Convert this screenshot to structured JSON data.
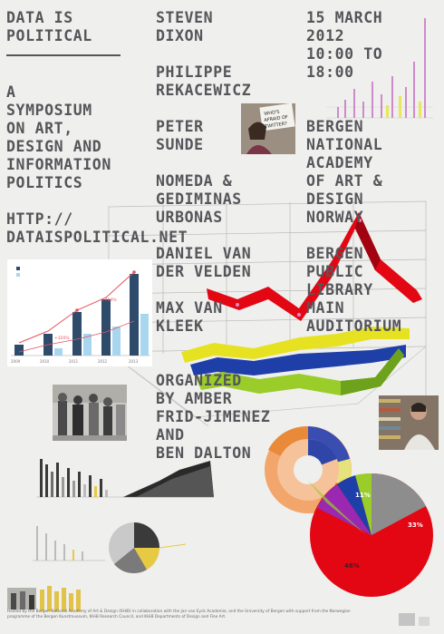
{
  "poster": {
    "title": "DATA IS\nPOLITICAL",
    "subtitle": "A\nSYMPOSIUM\nON ART,\nDESIGN AND\nINFORMATION\nPOLITICS",
    "url": "HTTP://\nDATAISPOLITICAL.NET",
    "speakers": [
      "STEVEN\nDIXON",
      "PHILIPPE\nREKACEWICZ",
      "PETER\nSUNDE",
      "NOMEDA &\nGEDIMINAS\nURBONAS",
      "DANIEL VAN\nDER VELDEN",
      "MAX VAN\nKLEEK"
    ],
    "organizers": "ORGANIZED\nBY AMBER\nFRID-JIMENEZ\nAND\nBEN DALTON",
    "date_time": "15 MARCH\n2012\n10:00 TO\n18:00",
    "host": "BERGEN\nNATIONAL\nACADEMY\nOF ART &\nDESIGN\nNORWAY",
    "venue": "BERGEN\nPUBLIC\nLIBRARY\nMAIN\nAUDITORIUM",
    "footer": "Hosted by the Bergen National Academy of Art & Design (KHiB) in collaboration with the Jan van Eyck Academie, and the University of Bergen with support from the Norwegian programme of the Bergen Kunstmuseum, KHiB Research Council, and KHiB Departments of Design and Fine Art.",
    "bar_chart": {
      "years": [
        "2009",
        "2010",
        "2011",
        "2012",
        "2013"
      ],
      "labels": [
        "+784%",
        "+320%"
      ]
    },
    "pie_labels": [
      "11%",
      "33%",
      "46%"
    ],
    "sign_text": "WHO'S\nAFRAID OF\nTWITTER?",
    "colors": {
      "red": "#e30613",
      "yellow": "#e6e221",
      "blue": "#1f3fa8",
      "green": "#9acd2a"
    }
  }
}
